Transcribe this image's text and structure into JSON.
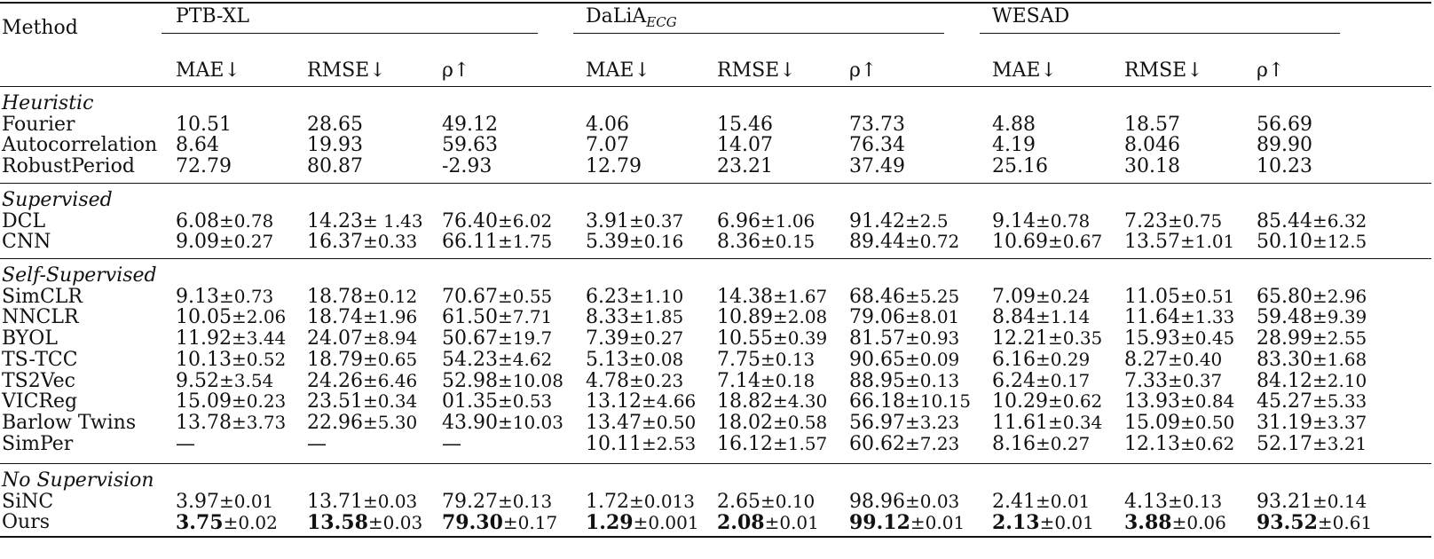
{
  "table": {
    "method_header": "Method",
    "groups": [
      {
        "label": "PTB-XL",
        "sub": ""
      },
      {
        "label": "DaLiA",
        "sub": "ECG"
      },
      {
        "label": "WESAD",
        "sub": ""
      }
    ],
    "metrics": [
      "MAE↓",
      "RMSE↓",
      "ρ↑"
    ],
    "sections": [
      {
        "title": "Heuristic",
        "rows": [
          {
            "method": "Fourier",
            "cells": [
              {
                "v": "10.51"
              },
              {
                "v": "28.65"
              },
              {
                "v": "49.12"
              },
              {
                "v": "4.06"
              },
              {
                "v": "15.46"
              },
              {
                "v": "73.73"
              },
              {
                "v": "4.88"
              },
              {
                "v": "18.57"
              },
              {
                "v": "56.69"
              }
            ]
          },
          {
            "method": "Autocorrelation",
            "cells": [
              {
                "v": "8.64"
              },
              {
                "v": "19.93"
              },
              {
                "v": "59.63"
              },
              {
                "v": "7.07"
              },
              {
                "v": "14.07"
              },
              {
                "v": "76.34"
              },
              {
                "v": "4.19"
              },
              {
                "v": "8.046"
              },
              {
                "v": "89.90"
              }
            ]
          },
          {
            "method": "RobustPeriod",
            "cells": [
              {
                "v": "72.79"
              },
              {
                "v": "80.87"
              },
              {
                "v": "-2.93"
              },
              {
                "v": "12.79"
              },
              {
                "v": "23.21"
              },
              {
                "v": "37.49"
              },
              {
                "v": "25.16"
              },
              {
                "v": "30.18"
              },
              {
                "v": "10.23"
              }
            ]
          }
        ]
      },
      {
        "title": "Supervised",
        "rows": [
          {
            "method": "DCL",
            "cells": [
              {
                "v": "6.08",
                "pm": "±0.78"
              },
              {
                "v": "14.23",
                "pm": "± 1.43"
              },
              {
                "v": "76.40",
                "pm": "±6.02"
              },
              {
                "v": "3.91",
                "pm": "±0.37"
              },
              {
                "v": "6.96",
                "pm": "±1.06"
              },
              {
                "v": "91.42",
                "pm": "±2.5"
              },
              {
                "v": "9.14",
                "pm": "±0.78"
              },
              {
                "v": "7.23",
                "pm": "±0.75"
              },
              {
                "v": "85.44",
                "pm": "±6.32"
              }
            ]
          },
          {
            "method": "CNN",
            "cells": [
              {
                "v": "9.09",
                "pm": "±0.27"
              },
              {
                "v": "16.37",
                "pm": "±0.33"
              },
              {
                "v": "66.11",
                "pm": "±1.75"
              },
              {
                "v": "5.39",
                "pm": "±0.16"
              },
              {
                "v": "8.36",
                "pm": "±0.15"
              },
              {
                "v": "89.44",
                "pm": "±0.72"
              },
              {
                "v": "10.69",
                "pm": "±0.67"
              },
              {
                "v": "13.57",
                "pm": "±1.01"
              },
              {
                "v": "50.10",
                "pm": "±12.5"
              }
            ]
          }
        ]
      },
      {
        "title": "Self-Supervised",
        "rows": [
          {
            "method": "SimCLR",
            "cells": [
              {
                "v": "9.13",
                "pm": "±0.73"
              },
              {
                "v": "18.78",
                "pm": "±0.12"
              },
              {
                "v": "70.67",
                "pm": "±0.55"
              },
              {
                "v": "6.23",
                "pm": "±1.10"
              },
              {
                "v": "14.38",
                "pm": "±1.67"
              },
              {
                "v": "68.46",
                "pm": "±5.25"
              },
              {
                "v": "7.09",
                "pm": "±0.24"
              },
              {
                "v": "11.05",
                "pm": "±0.51"
              },
              {
                "v": "65.80",
                "pm": "±2.96"
              }
            ]
          },
          {
            "method": "NNCLR",
            "cells": [
              {
                "v": "10.05",
                "pm": "±2.06"
              },
              {
                "v": "18.74",
                "pm": "±1.96"
              },
              {
                "v": "61.50",
                "pm": "±7.71"
              },
              {
                "v": "8.33",
                "pm": "±1.85"
              },
              {
                "v": "10.89",
                "pm": "±2.08"
              },
              {
                "v": "79.06",
                "pm": "±8.01"
              },
              {
                "v": "8.84",
                "pm": "±1.14"
              },
              {
                "v": "11.64",
                "pm": "±1.33"
              },
              {
                "v": "59.48",
                "pm": "±9.39"
              }
            ]
          },
          {
            "method": "BYOL",
            "cells": [
              {
                "v": "11.92",
                "pm": "±3.44"
              },
              {
                "v": "24.07",
                "pm": "±8.94"
              },
              {
                "v": "50.67",
                "pm": "±19.7"
              },
              {
                "v": "7.39",
                "pm": "±0.27"
              },
              {
                "v": "10.55",
                "pm": "±0.39"
              },
              {
                "v": "81.57",
                "pm": "±0.93"
              },
              {
                "v": "12.21",
                "pm": "±0.35"
              },
              {
                "v": "15.93",
                "pm": "±0.45"
              },
              {
                "v": "28.99",
                "pm": "±2.55"
              }
            ]
          },
          {
            "method": "TS-TCC",
            "cells": [
              {
                "v": "10.13",
                "pm": "±0.52"
              },
              {
                "v": "18.79",
                "pm": "±0.65"
              },
              {
                "v": "54.23",
                "pm": "±4.62"
              },
              {
                "v": "5.13",
                "pm": "±0.08"
              },
              {
                "v": "7.75",
                "pm": "±0.13"
              },
              {
                "v": "90.65",
                "pm": "±0.09"
              },
              {
                "v": "6.16",
                "pm": "±0.29"
              },
              {
                "v": "8.27",
                "pm": "±0.40"
              },
              {
                "v": "83.30",
                "pm": "±1.68"
              }
            ]
          },
          {
            "method": "TS2Vec",
            "cells": [
              {
                "v": "9.52",
                "pm": "±3.54"
              },
              {
                "v": "24.26",
                "pm": "±6.46"
              },
              {
                "v": "52.98",
                "pm": "±10.08"
              },
              {
                "v": "4.78",
                "pm": "±0.23"
              },
              {
                "v": "7.14",
                "pm": "±0.18"
              },
              {
                "v": "88.95",
                "pm": "±0.13"
              },
              {
                "v": "6.24",
                "pm": "±0.17"
              },
              {
                "v": "7.33",
                "pm": "±0.37"
              },
              {
                "v": "84.12",
                "pm": "±2.10"
              }
            ]
          },
          {
            "method": "VICReg",
            "cells": [
              {
                "v": "15.09",
                "pm": "±0.23"
              },
              {
                "v": "23.51",
                "pm": "±0.34"
              },
              {
                "v": "01.35",
                "pm": "±0.53"
              },
              {
                "v": "13.12",
                "pm": "±4.66"
              },
              {
                "v": "18.82",
                "pm": "±4.30"
              },
              {
                "v": "66.18",
                "pm": "±10.15"
              },
              {
                "v": "10.29",
                "pm": "±0.62"
              },
              {
                "v": "13.93",
                "pm": "±0.84"
              },
              {
                "v": "45.27",
                "pm": "±5.33"
              }
            ]
          },
          {
            "method": "Barlow Twins",
            "cells": [
              {
                "v": "13.78",
                "pm": "±3.73"
              },
              {
                "v": "22.96",
                "pm": "±5.30"
              },
              {
                "v": "43.90",
                "pm": "±10.03"
              },
              {
                "v": "13.47",
                "pm": "±0.50"
              },
              {
                "v": "18.02",
                "pm": "±0.58"
              },
              {
                "v": "56.97",
                "pm": "±3.23"
              },
              {
                "v": "11.61",
                "pm": "±0.34"
              },
              {
                "v": "15.09",
                "pm": "±0.50"
              },
              {
                "v": "31.19",
                "pm": "±3.37"
              }
            ]
          },
          {
            "method": "SimPer",
            "cells": [
              {
                "v": "—"
              },
              {
                "v": "—"
              },
              {
                "v": "—"
              },
              {
                "v": "10.11",
                "pm": "±2.53"
              },
              {
                "v": "16.12",
                "pm": "±1.57"
              },
              {
                "v": "60.62",
                "pm": "±7.23"
              },
              {
                "v": "8.16",
                "pm": "±0.27"
              },
              {
                "v": "12.13",
                "pm": "±0.62"
              },
              {
                "v": "52.17",
                "pm": "±3.21"
              }
            ]
          }
        ]
      },
      {
        "title": "No Supervision",
        "rows": [
          {
            "method": "SiNC",
            "cells": [
              {
                "v": "3.97",
                "pm": "±0.01"
              },
              {
                "v": "13.71",
                "pm": "±0.03"
              },
              {
                "v": "79.27",
                "pm": "±0.13"
              },
              {
                "v": "1.72",
                "pm": "±0.013"
              },
              {
                "v": "2.65",
                "pm": "±0.10"
              },
              {
                "v": "98.96",
                "pm": "±0.03"
              },
              {
                "v": "2.41",
                "pm": "±0.01"
              },
              {
                "v": "4.13",
                "pm": "±0.13"
              },
              {
                "v": "93.21",
                "pm": "±0.14"
              }
            ]
          },
          {
            "method": "Ours",
            "cells": [
              {
                "v": "3.75",
                "pm": "±0.02",
                "bold": true
              },
              {
                "v": "13.58",
                "pm": "±0.03",
                "bold": true
              },
              {
                "v": "79.30",
                "pm": "±0.17",
                "bold": true
              },
              {
                "v": "1.29",
                "pm": "±0.001",
                "bold": true
              },
              {
                "v": "2.08",
                "pm": "±0.01",
                "bold": true
              },
              {
                "v": "99.12",
                "pm": "±0.01",
                "bold": true
              },
              {
                "v": "2.13",
                "pm": "±0.01",
                "bold": true
              },
              {
                "v": "3.88",
                "pm": "±0.06",
                "bold": true
              },
              {
                "v": "93.52",
                "pm": "±0.61",
                "bold": true
              }
            ]
          }
        ]
      }
    ]
  }
}
